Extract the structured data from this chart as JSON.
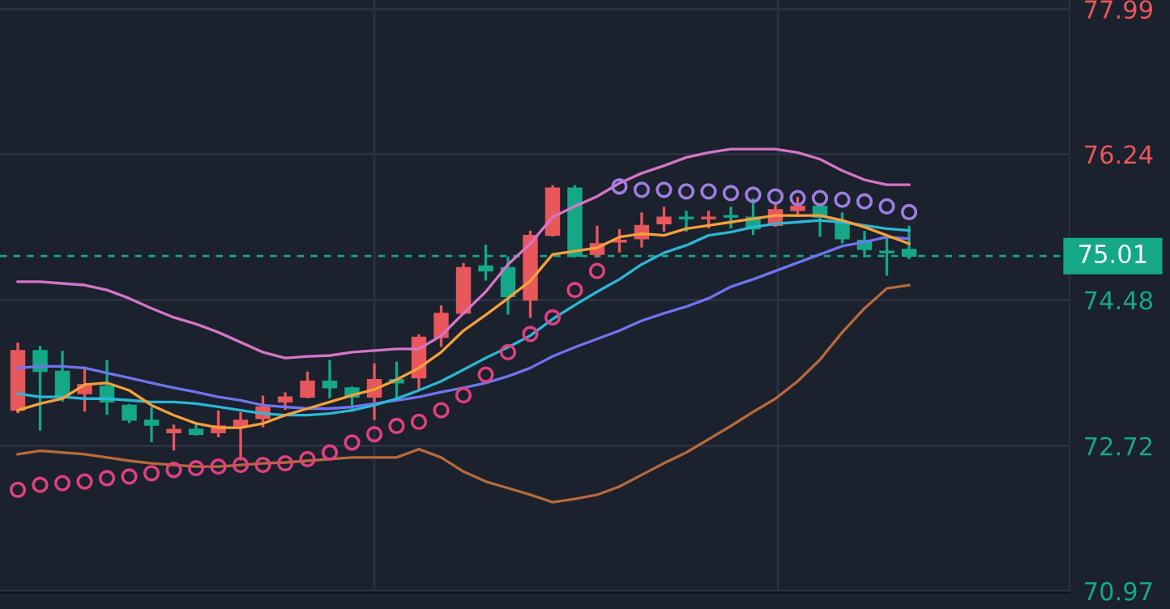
{
  "chart_data": {
    "type": "candlestick",
    "categories": [
      null,
      null,
      null,
      null,
      null,
      null,
      null,
      null,
      null,
      null,
      null,
      null,
      null,
      null,
      null,
      null,
      null,
      null,
      null,
      null,
      null,
      null,
      null,
      null,
      null,
      null,
      null,
      null,
      null,
      null,
      null,
      null,
      null,
      null,
      null,
      null,
      null,
      null,
      null,
      null,
      null
    ],
    "ohlc": [
      [
        73.15,
        73.95,
        73.13,
        73.87
      ],
      [
        73.87,
        73.91,
        72.92,
        73.62
      ],
      [
        73.62,
        73.85,
        73.27,
        73.31
      ],
      [
        73.35,
        73.66,
        73.15,
        73.46
      ],
      [
        73.44,
        73.74,
        73.11,
        73.25
      ],
      [
        73.21,
        73.21,
        73.01,
        73.03
      ],
      [
        73.03,
        73.17,
        72.78,
        72.97
      ],
      [
        72.88,
        72.96,
        72.68,
        72.92
      ],
      [
        72.92,
        72.96,
        72.86,
        72.86
      ],
      [
        72.88,
        73.13,
        72.84,
        72.96
      ],
      [
        72.96,
        73.11,
        72.56,
        73.03
      ],
      [
        73.05,
        73.31,
        72.96,
        73.19
      ],
      [
        73.25,
        73.35,
        73.17,
        73.31
      ],
      [
        73.31,
        73.6,
        73.31,
        73.5
      ],
      [
        73.5,
        73.74,
        73.31,
        73.42
      ],
      [
        73.42,
        73.42,
        73.15,
        73.31
      ],
      [
        73.31,
        73.7,
        73.05,
        73.52
      ],
      [
        73.52,
        73.72,
        73.27,
        73.48
      ],
      [
        73.54,
        74.05,
        73.4,
        74.03
      ],
      [
        74.03,
        74.4,
        73.93,
        74.32
      ],
      [
        74.32,
        74.91,
        74.32,
        74.87
      ],
      [
        74.89,
        75.13,
        74.73,
        74.83
      ],
      [
        74.87,
        74.99,
        74.32,
        74.52
      ],
      [
        74.48,
        75.3,
        74.28,
        75.26
      ],
      [
        75.26,
        75.85,
        75.26,
        75.83
      ],
      [
        75.83,
        75.85,
        75.01,
        75.01
      ],
      [
        75.03,
        75.36,
        75.01,
        75.16
      ],
      [
        75.18,
        75.32,
        75.07,
        75.2
      ],
      [
        75.22,
        75.52,
        75.13,
        75.38
      ],
      [
        75.4,
        75.59,
        75.32,
        75.48
      ],
      [
        75.48,
        75.54,
        75.32,
        75.46
      ],
      [
        75.46,
        75.54,
        75.36,
        75.48
      ],
      [
        75.5,
        75.59,
        75.36,
        75.48
      ],
      [
        75.48,
        75.69,
        75.28,
        75.34
      ],
      [
        75.38,
        75.65,
        75.38,
        75.57
      ],
      [
        75.56,
        75.71,
        75.5,
        75.61
      ],
      [
        75.61,
        75.61,
        75.26,
        75.48
      ],
      [
        75.42,
        75.52,
        75.18,
        75.22
      ],
      [
        75.2,
        75.3,
        75.01,
        75.09
      ],
      [
        75.07,
        75.22,
        74.79,
        75.05
      ],
      [
        75.09,
        75.36,
        74.99,
        75.01
      ]
    ],
    "colors": [
      "#e8575b",
      "#14a889",
      "#14a889",
      "#e8575b",
      "#14a889",
      "#14a889",
      "#14a889",
      "#e8575b",
      "#14a889",
      "#e8575b",
      "#e8575b",
      "#e8575b",
      "#e8575b",
      "#e8575b",
      "#14a889",
      "#14a889",
      "#e8575b",
      "#14a889",
      "#e8575b",
      "#e8575b",
      "#e8575b",
      "#14a889",
      "#14a889",
      "#e8575b",
      "#e8575b",
      "#14a889",
      "#e8575b",
      "#e8575b",
      "#e8575b",
      "#e8575b",
      "#14a889",
      "#e8575b",
      "#14a889",
      "#14a889",
      "#e8575b",
      "#e8575b",
      "#14a889",
      "#14a889",
      "#14a889",
      "#14a889",
      "#14a889"
    ],
    "series": [
      {
        "type": "line",
        "color": "#d575c8",
        "values": [
          74.7,
          74.7,
          74.68,
          74.66,
          74.6,
          74.5,
          74.38,
          74.27,
          74.19,
          74.09,
          73.97,
          73.85,
          73.78,
          73.8,
          73.81,
          73.85,
          73.87,
          73.89,
          73.89,
          74.05,
          74.32,
          74.58,
          74.91,
          75.16,
          75.48,
          75.61,
          75.73,
          75.89,
          76.01,
          76.1,
          76.2,
          76.26,
          76.3,
          76.3,
          76.3,
          76.26,
          76.18,
          76.04,
          75.93,
          75.87,
          75.87
        ]
      },
      {
        "type": "line",
        "color": "#b8693a",
        "values": [
          72.62,
          72.66,
          72.64,
          72.62,
          72.58,
          72.54,
          72.51,
          72.49,
          72.47,
          72.47,
          72.49,
          72.51,
          72.52,
          72.54,
          72.56,
          72.58,
          72.58,
          72.58,
          72.68,
          72.58,
          72.41,
          72.29,
          72.21,
          72.13,
          72.04,
          72.08,
          72.13,
          72.23,
          72.37,
          72.51,
          72.64,
          72.8,
          72.96,
          73.13,
          73.29,
          73.5,
          73.76,
          74.09,
          74.38,
          74.62,
          74.66
        ]
      },
      {
        "type": "line",
        "color": "#6f74ee",
        "values": [
          73.66,
          73.68,
          73.68,
          73.66,
          73.6,
          73.54,
          73.48,
          73.42,
          73.37,
          73.31,
          73.27,
          73.21,
          73.19,
          73.17,
          73.17,
          73.19,
          73.23,
          73.27,
          73.31,
          73.37,
          73.42,
          73.48,
          73.56,
          73.66,
          73.8,
          73.91,
          74.01,
          74.11,
          74.23,
          74.32,
          74.4,
          74.5,
          74.64,
          74.73,
          74.83,
          74.93,
          75.03,
          75.13,
          75.18,
          75.24,
          75.22
        ]
      },
      {
        "type": "line",
        "color": "#2ab7d6",
        "values": [
          73.35,
          73.31,
          73.31,
          73.29,
          73.29,
          73.27,
          73.25,
          73.25,
          73.23,
          73.19,
          73.15,
          73.11,
          73.09,
          73.09,
          73.11,
          73.15,
          73.21,
          73.29,
          73.39,
          73.5,
          73.64,
          73.78,
          73.91,
          74.05,
          74.25,
          74.42,
          74.58,
          74.73,
          74.91,
          75.05,
          75.14,
          75.26,
          75.3,
          75.36,
          75.4,
          75.42,
          75.44,
          75.42,
          75.38,
          75.34,
          75.32
        ]
      },
      {
        "type": "line",
        "color": "#f5a03a",
        "values": [
          73.15,
          73.23,
          73.29,
          73.46,
          73.48,
          73.39,
          73.21,
          73.09,
          72.99,
          72.94,
          72.94,
          72.99,
          73.09,
          73.17,
          73.25,
          73.33,
          73.4,
          73.52,
          73.66,
          73.85,
          74.11,
          74.3,
          74.5,
          74.71,
          75.03,
          75.07,
          75.11,
          75.24,
          75.28,
          75.26,
          75.34,
          75.38,
          75.42,
          75.46,
          75.5,
          75.5,
          75.5,
          75.44,
          75.36,
          75.26,
          75.16
        ]
      },
      {
        "type": "scatter",
        "marker": "circle",
        "color": "#e0407f",
        "values": [
          72.19,
          72.25,
          72.27,
          72.29,
          72.33,
          72.35,
          72.39,
          72.43,
          72.45,
          72.47,
          72.49,
          72.49,
          72.51,
          72.56,
          72.64,
          72.76,
          72.86,
          72.96,
          73.01,
          73.15,
          73.33,
          73.58,
          73.85,
          74.07,
          74.27,
          74.6,
          74.83,
          null,
          null,
          null,
          null,
          null,
          null,
          null,
          null,
          null,
          null,
          null,
          null,
          null,
          null
        ]
      },
      {
        "type": "scatter",
        "marker": "circle",
        "color": "#a07ee0",
        "values": [
          null,
          null,
          null,
          null,
          null,
          null,
          null,
          null,
          null,
          null,
          null,
          null,
          null,
          null,
          null,
          null,
          null,
          null,
          null,
          null,
          null,
          null,
          null,
          null,
          null,
          null,
          null,
          75.85,
          75.81,
          75.81,
          75.79,
          75.79,
          75.77,
          75.75,
          75.73,
          75.71,
          75.71,
          75.69,
          75.67,
          75.61,
          75.54
        ]
      }
    ],
    "line_style": "solid",
    "ylim": [
      70.95,
      78.1
    ],
    "yticks": [
      70.97,
      72.72,
      74.48,
      76.24,
      77.99
    ],
    "grid": "y",
    "tick_labels": "y",
    "ref_lines": [
      {
        "axis": "y",
        "value": 75.01,
        "label": "75.01",
        "color": "#14a889",
        "line_style": "dashed"
      }
    ]
  }
}
